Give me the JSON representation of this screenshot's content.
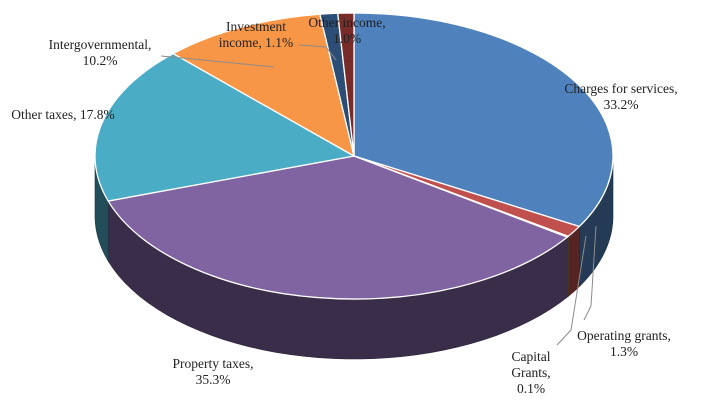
{
  "chart_data": {
    "type": "pie",
    "style": "3d",
    "slices": [
      {
        "category": "Charges for services",
        "value": 33.2,
        "label_lines": [
          "Charges for services,",
          "33.2%"
        ],
        "color": "#4f81bd"
      },
      {
        "category": "Operating grants",
        "value": 1.3,
        "label_lines": [
          "Operating grants,",
          "1.3%"
        ],
        "color": "#c0504d"
      },
      {
        "category": "Capital Grants",
        "value": 0.1,
        "label_lines": [
          "Capital",
          "Grants,",
          "0.1%"
        ],
        "color": "#9bbb59"
      },
      {
        "category": "Property taxes",
        "value": 35.3,
        "label_lines": [
          "Property taxes,",
          "35.3%"
        ],
        "color": "#8064a2"
      },
      {
        "category": "Other taxes",
        "value": 17.8,
        "label_lines": [
          "Other taxes, 17.8%"
        ],
        "color": "#4bacc6"
      },
      {
        "category": "Intergovernmental",
        "value": 10.2,
        "label_lines": [
          "Intergovernmental,",
          "10.2%"
        ],
        "color": "#f79646"
      },
      {
        "category": "Investment income",
        "value": 1.1,
        "label_lines": [
          "Investment",
          "income, 1.1%"
        ],
        "color": "#2c4d75"
      },
      {
        "category": "Other income",
        "value": 1.0,
        "label_lines": [
          "Other income,",
          "1.0%"
        ],
        "color": "#772c2a"
      }
    ],
    "legend": "none"
  }
}
